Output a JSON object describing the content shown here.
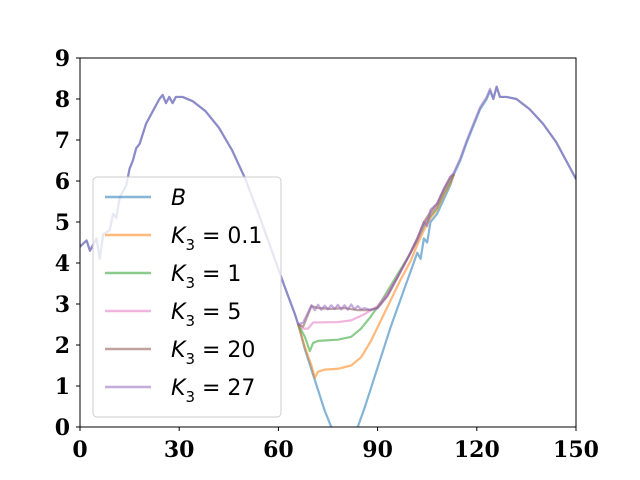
{
  "chart_data": {
    "type": "line",
    "title": "",
    "xlabel": "",
    "ylabel": "",
    "xlim": [
      0,
      150
    ],
    "ylim": [
      0,
      9
    ],
    "x_ticks": [
      0,
      30,
      60,
      90,
      120,
      150
    ],
    "y_ticks": [
      0,
      1,
      2,
      3,
      4,
      5,
      6,
      7,
      8,
      9
    ],
    "grid": false,
    "legend_position": "lower-left",
    "series": [
      {
        "name": "B",
        "name_parts": [
          "B",
          ""
        ],
        "color": "#1f77b4",
        "points": [
          [
            0,
            4.4
          ],
          [
            2,
            4.55
          ],
          [
            3,
            4.3
          ],
          [
            5,
            4.6
          ],
          [
            6,
            4.1
          ],
          [
            7,
            4.7
          ],
          [
            9,
            4.8
          ],
          [
            10,
            5.2
          ],
          [
            11,
            5.1
          ],
          [
            12,
            5.6
          ],
          [
            14,
            5.9
          ],
          [
            15,
            6.3
          ],
          [
            16,
            6.5
          ],
          [
            17,
            6.8
          ],
          [
            18,
            6.9
          ],
          [
            20,
            7.4
          ],
          [
            22,
            7.7
          ],
          [
            24,
            8.0
          ],
          [
            25,
            8.1
          ],
          [
            26,
            7.9
          ],
          [
            27,
            8.05
          ],
          [
            28,
            7.9
          ],
          [
            29,
            8.05
          ],
          [
            31,
            8.05
          ],
          [
            34,
            7.95
          ],
          [
            38,
            7.7
          ],
          [
            42,
            7.3
          ],
          [
            46,
            6.75
          ],
          [
            50,
            6.05
          ],
          [
            54,
            5.2
          ],
          [
            58,
            4.3
          ],
          [
            62,
            3.4
          ],
          [
            65,
            2.75
          ],
          [
            66,
            2.5
          ],
          [
            68,
            1.9
          ],
          [
            70,
            1.4
          ],
          [
            72,
            0.9
          ],
          [
            74,
            0.4
          ],
          [
            76,
            0.0
          ]
        ],
        "points2": [
          [
            84,
            0.0
          ],
          [
            86,
            0.45
          ],
          [
            88,
            0.95
          ],
          [
            90,
            1.45
          ],
          [
            92,
            1.95
          ],
          [
            94,
            2.45
          ],
          [
            96,
            2.9
          ],
          [
            98,
            3.35
          ],
          [
            100,
            3.8
          ],
          [
            102,
            4.25
          ],
          [
            103,
            4.1
          ],
          [
            104,
            4.6
          ],
          [
            105,
            4.5
          ],
          [
            106,
            5.0
          ],
          [
            108,
            5.2
          ],
          [
            110,
            5.55
          ],
          [
            112,
            5.9
          ],
          [
            113,
            6.15
          ],
          [
            115,
            6.5
          ],
          [
            117,
            6.95
          ],
          [
            119,
            7.35
          ],
          [
            121,
            7.75
          ],
          [
            123,
            8.0
          ],
          [
            124,
            8.2
          ],
          [
            125,
            8.0
          ],
          [
            126,
            8.3
          ],
          [
            127,
            8.05
          ],
          [
            129,
            8.05
          ],
          [
            132,
            8.0
          ],
          [
            136,
            7.75
          ],
          [
            140,
            7.4
          ],
          [
            144,
            6.95
          ],
          [
            148,
            6.35
          ],
          [
            150,
            6.05
          ]
        ]
      },
      {
        "name": "K3 = 0.1",
        "name_parts": [
          "K",
          "3",
          " = 0.1"
        ],
        "color": "#ff7f0e",
        "points": [
          [
            66,
            2.5
          ],
          [
            68,
            1.95
          ],
          [
            70,
            1.5
          ],
          [
            71,
            1.2
          ],
          [
            72,
            1.35
          ],
          [
            74,
            1.4
          ],
          [
            78,
            1.42
          ],
          [
            82,
            1.5
          ],
          [
            85,
            1.7
          ],
          [
            88,
            2.1
          ],
          [
            91,
            2.6
          ],
          [
            94,
            3.1
          ],
          [
            97,
            3.6
          ],
          [
            100,
            4.05
          ],
          [
            102,
            4.45
          ],
          [
            104,
            4.8
          ],
          [
            106,
            5.1
          ],
          [
            108,
            5.3
          ],
          [
            110,
            5.65
          ],
          [
            112,
            5.95
          ],
          [
            113,
            6.15
          ]
        ]
      },
      {
        "name": "K3 = 1",
        "name_parts": [
          "K",
          "3",
          " = 1"
        ],
        "color": "#2ca02c",
        "points": [
          [
            66,
            2.5
          ],
          [
            68,
            2.2
          ],
          [
            69.5,
            1.85
          ],
          [
            70.5,
            2.05
          ],
          [
            72,
            2.1
          ],
          [
            78,
            2.13
          ],
          [
            82,
            2.2
          ],
          [
            85,
            2.4
          ],
          [
            88,
            2.7
          ],
          [
            91,
            3.05
          ],
          [
            94,
            3.45
          ],
          [
            97,
            3.85
          ],
          [
            100,
            4.25
          ],
          [
            102,
            4.55
          ],
          [
            104,
            4.9
          ],
          [
            106,
            5.15
          ],
          [
            108,
            5.35
          ],
          [
            110,
            5.7
          ],
          [
            112,
            6.0
          ],
          [
            113,
            6.15
          ]
        ]
      },
      {
        "name": "K3 = 5",
        "name_parts": [
          "K",
          "3",
          " = 5"
        ],
        "color": "#e377c2",
        "points": [
          [
            66,
            2.5
          ],
          [
            67.5,
            2.4
          ],
          [
            69,
            2.4
          ],
          [
            70.5,
            2.55
          ],
          [
            72,
            2.55
          ],
          [
            78,
            2.56
          ],
          [
            82,
            2.6
          ],
          [
            86,
            2.75
          ],
          [
            90,
            2.95
          ],
          [
            93,
            3.25
          ],
          [
            96,
            3.65
          ],
          [
            99,
            4.1
          ],
          [
            102,
            4.55
          ],
          [
            104,
            4.95
          ],
          [
            106,
            5.2
          ],
          [
            108,
            5.4
          ],
          [
            110,
            5.75
          ],
          [
            112,
            6.05
          ],
          [
            113,
            6.15
          ]
        ]
      },
      {
        "name": "K3 = 20",
        "name_parts": [
          "K",
          "3",
          " = 20"
        ],
        "color": "#8c564b",
        "points": [
          [
            66,
            2.5
          ],
          [
            67.5,
            2.45
          ],
          [
            69,
            2.75
          ],
          [
            70,
            2.95
          ],
          [
            72,
            2.9
          ],
          [
            76,
            2.88
          ],
          [
            80,
            2.9
          ],
          [
            84,
            2.85
          ],
          [
            87,
            2.85
          ],
          [
            90,
            2.9
          ],
          [
            93,
            3.2
          ],
          [
            96,
            3.65
          ],
          [
            99,
            4.1
          ],
          [
            102,
            4.6
          ],
          [
            104,
            5.0
          ],
          [
            106,
            5.25
          ],
          [
            108,
            5.45
          ],
          [
            110,
            5.8
          ],
          [
            112,
            6.1
          ],
          [
            113,
            6.15
          ]
        ]
      },
      {
        "name": "K3 = 27",
        "name_parts": [
          "K",
          "3",
          " = 27"
        ],
        "color": "#9467bd",
        "points": [
          [
            0,
            4.4
          ],
          [
            2,
            4.55
          ],
          [
            3,
            4.3
          ],
          [
            5,
            4.6
          ],
          [
            6,
            4.1
          ],
          [
            7,
            4.7
          ],
          [
            9,
            4.8
          ],
          [
            10,
            5.2
          ],
          [
            11,
            5.1
          ],
          [
            12,
            5.6
          ],
          [
            14,
            5.9
          ],
          [
            15,
            6.3
          ],
          [
            16,
            6.5
          ],
          [
            17,
            6.8
          ],
          [
            18,
            6.9
          ],
          [
            20,
            7.4
          ],
          [
            22,
            7.7
          ],
          [
            24,
            8.0
          ],
          [
            25,
            8.1
          ],
          [
            26,
            7.9
          ],
          [
            27,
            8.05
          ],
          [
            28,
            7.9
          ],
          [
            29,
            8.05
          ],
          [
            31,
            8.05
          ],
          [
            34,
            7.95
          ],
          [
            38,
            7.7
          ],
          [
            42,
            7.3
          ],
          [
            46,
            6.75
          ],
          [
            50,
            6.05
          ],
          [
            54,
            5.2
          ],
          [
            58,
            4.3
          ],
          [
            62,
            3.4
          ],
          [
            65,
            2.75
          ],
          [
            66,
            2.5
          ],
          [
            67.5,
            2.55
          ],
          [
            69,
            2.8
          ],
          [
            70,
            2.97
          ],
          [
            71,
            2.85
          ],
          [
            72,
            2.98
          ],
          [
            73,
            2.86
          ],
          [
            74,
            2.96
          ],
          [
            75,
            2.87
          ],
          [
            76,
            2.97
          ],
          [
            77,
            2.88
          ],
          [
            78,
            2.98
          ],
          [
            79,
            2.87
          ],
          [
            80,
            2.97
          ],
          [
            81,
            2.86
          ],
          [
            82,
            2.99
          ],
          [
            83,
            2.87
          ],
          [
            84,
            2.95
          ],
          [
            85,
            2.87
          ],
          [
            86,
            2.9
          ],
          [
            88,
            2.85
          ],
          [
            90,
            2.9
          ],
          [
            93,
            3.2
          ],
          [
            96,
            3.65
          ],
          [
            99,
            4.1
          ],
          [
            102,
            4.6
          ],
          [
            104,
            5.0
          ],
          [
            105,
            4.9
          ],
          [
            106,
            5.3
          ],
          [
            108,
            5.45
          ],
          [
            110,
            5.8
          ],
          [
            112,
            6.1
          ],
          [
            113,
            6.2
          ],
          [
            115,
            6.55
          ],
          [
            117,
            7.0
          ],
          [
            119,
            7.4
          ],
          [
            121,
            7.8
          ],
          [
            123,
            8.05
          ],
          [
            124,
            8.25
          ],
          [
            125,
            8.0
          ],
          [
            126,
            8.3
          ],
          [
            127,
            8.05
          ],
          [
            129,
            8.05
          ],
          [
            132,
            8.0
          ],
          [
            136,
            7.75
          ],
          [
            140,
            7.4
          ],
          [
            144,
            6.95
          ],
          [
            148,
            6.35
          ],
          [
            150,
            6.05
          ]
        ]
      }
    ]
  }
}
